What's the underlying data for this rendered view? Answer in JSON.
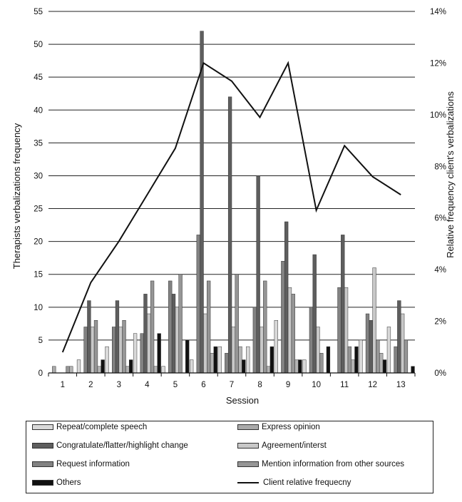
{
  "chart_data": {
    "type": "bar",
    "xlabel": "Session",
    "ylabel": "Therapists verbalizations frequency",
    "y2label": "Relative frequency client's verbalizations",
    "categories": [
      "1",
      "2",
      "3",
      "4",
      "5",
      "6",
      "7",
      "8",
      "9",
      "10",
      "11",
      "12",
      "13"
    ],
    "ylim": [
      0,
      55
    ],
    "yticks": [
      "0",
      "5",
      "10",
      "15",
      "20",
      "25",
      "30",
      "35",
      "40",
      "45",
      "50",
      "55"
    ],
    "y2lim": [
      0,
      14
    ],
    "y2ticks": [
      "0%",
      "2%",
      "4%",
      "6%",
      "8%",
      "10%",
      "12%",
      "14%"
    ],
    "grid": true,
    "series": [
      {
        "name": "Repeat/complete speech",
        "color": "#d9d9d9",
        "values": [
          0,
          2,
          4,
          6,
          1,
          2,
          4,
          4,
          8,
          2,
          0,
          5,
          7
        ]
      },
      {
        "name": "Express opinion",
        "color": "#a9a9a9",
        "values": [
          1,
          0,
          0,
          0,
          0,
          0,
          0,
          0,
          0,
          0,
          0,
          0,
          0
        ]
      },
      {
        "name": "Request information",
        "color": "#828282",
        "values": [
          0,
          7,
          7,
          6,
          14,
          21,
          3,
          10,
          17,
          10,
          13,
          9,
          4
        ]
      },
      {
        "name": "Congratulate/flatter/highlight change",
        "color": "#5e5e5e",
        "values": [
          0,
          11,
          11,
          12,
          12,
          52,
          42,
          30,
          23,
          18,
          21,
          8,
          11
        ]
      },
      {
        "name": "Agreement/interst",
        "color": "#c8c8c8",
        "values": [
          0,
          7,
          7,
          9,
          10,
          9,
          7,
          7,
          13,
          7,
          13,
          16,
          9
        ]
      },
      {
        "name": "Mention information from other sources",
        "color": "#969696",
        "values": [
          1,
          8,
          8,
          14,
          15,
          14,
          15,
          14,
          12,
          3,
          4,
          5,
          5
        ]
      },
      {
        "name": "Express opinion",
        "color": "#b4b4b4",
        "values": [
          1,
          1,
          1,
          1,
          0,
          3,
          4,
          1,
          2,
          0,
          2,
          3,
          0
        ]
      },
      {
        "name": "Others",
        "color": "#111111",
        "values": [
          0,
          2,
          2,
          6,
          5,
          4,
          2,
          4,
          2,
          4,
          4,
          2,
          1
        ]
      }
    ],
    "line": {
      "name": "Client relative frequecny",
      "color": "#111111",
      "values": [
        0.8,
        3.5,
        5.1,
        6.9,
        8.7,
        12.0,
        11.3,
        9.9,
        12.0,
        6.3,
        8.8,
        7.6,
        6.9
      ]
    },
    "legend": {
      "position": "bottom",
      "items": [
        {
          "label": "Repeat/complete speech",
          "kind": "bar",
          "color": "#d9d9d9"
        },
        {
          "label": "Express opinion",
          "kind": "bar",
          "color": "#a9a9a9"
        },
        {
          "label": "Congratulate/flatter/highlight change",
          "kind": "bar",
          "color": "#5e5e5e"
        },
        {
          "label": "Agreement/interst",
          "kind": "bar",
          "color": "#c8c8c8"
        },
        {
          "label": "Request information",
          "kind": "bar",
          "color": "#828282"
        },
        {
          "label": "Mention information from other sources",
          "kind": "bar",
          "color": "#969696"
        },
        {
          "label": "Others",
          "kind": "bar",
          "color": "#111111"
        },
        {
          "label": "Client relative frequecny",
          "kind": "line",
          "color": "#111111"
        }
      ]
    }
  }
}
